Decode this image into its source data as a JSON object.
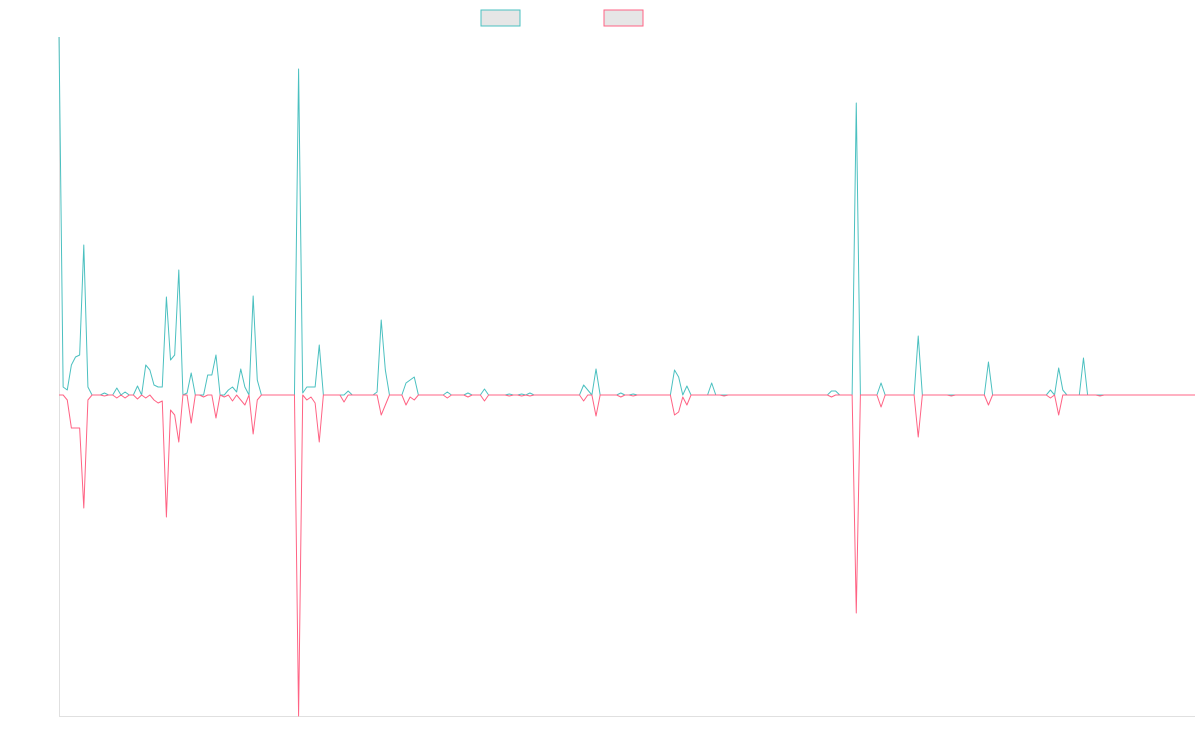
{
  "chart_data": {
    "type": "line",
    "categories": [
      null,
      null,
      null,
      null,
      null,
      null,
      null,
      null,
      null,
      null,
      null,
      null,
      null,
      null,
      null,
      null,
      null,
      null,
      null,
      null,
      null,
      null,
      null,
      null,
      null,
      null,
      null,
      null,
      null,
      null,
      null,
      null,
      null,
      null,
      null,
      null,
      null,
      null,
      null,
      null,
      null,
      null,
      null,
      null,
      null,
      null,
      null,
      null,
      null,
      null,
      null,
      null,
      null,
      null,
      null,
      null,
      null,
      null,
      null,
      null,
      null,
      null,
      null,
      null,
      null,
      null,
      null,
      null,
      null,
      null,
      null,
      null,
      null,
      null,
      null,
      null,
      null,
      null,
      null,
      null,
      null,
      null,
      null,
      null,
      null,
      null,
      null,
      null,
      null,
      null,
      null,
      null,
      null,
      null,
      null,
      null,
      null,
      null,
      null,
      null,
      null,
      null,
      null,
      null,
      null,
      null,
      null,
      null,
      null,
      null,
      null,
      null,
      null,
      null,
      null,
      null,
      null,
      null,
      null,
      null,
      null,
      null,
      null,
      null,
      null,
      null,
      null,
      null,
      null,
      null,
      null,
      null,
      null,
      null,
      null,
      null,
      null,
      null,
      null,
      null,
      null,
      null,
      null,
      null,
      null,
      null,
      null,
      null,
      null,
      null,
      null,
      null,
      null,
      null,
      null,
      null,
      null,
      null,
      null,
      null,
      null,
      null,
      null,
      null,
      null,
      null,
      null,
      null,
      null,
      null,
      null,
      null,
      null,
      null,
      null,
      null,
      null,
      null,
      null,
      null,
      null,
      null,
      null,
      null,
      null,
      null,
      null,
      null,
      null,
      null,
      null,
      null,
      null,
      null,
      null,
      null,
      null,
      null,
      null,
      null,
      null,
      null,
      null,
      null,
      null,
      null,
      null,
      null,
      null,
      null,
      null,
      null,
      null,
      null,
      null,
      null,
      null,
      null,
      null,
      null,
      null,
      null,
      null,
      null,
      null,
      null,
      null,
      null,
      null,
      null,
      null,
      null,
      null,
      null,
      null,
      null,
      null,
      null,
      null,
      null,
      null,
      null,
      null,
      null,
      null,
      null,
      null,
      null,
      null,
      null,
      null,
      null,
      null,
      null,
      null,
      null,
      null,
      null,
      null,
      null,
      null,
      null,
      null,
      null,
      null,
      null,
      null,
      null,
      null,
      null,
      null,
      null,
      null,
      null,
      null,
      null
    ],
    "series": [
      {
        "color": "#4bc0c0",
        "values": [
          358,
          8,
          5,
          30,
          38,
          40,
          150,
          8,
          0,
          0,
          0,
          2,
          0,
          0,
          7,
          0,
          3,
          0,
          0,
          9,
          0,
          30,
          25,
          10,
          8,
          8,
          98,
          35,
          40,
          125,
          0,
          2,
          22,
          0,
          0,
          0,
          20,
          20,
          40,
          0,
          0,
          5,
          8,
          3,
          26,
          8,
          0,
          99,
          15,
          0,
          0,
          0,
          0,
          0,
          0,
          0,
          0,
          0,
          326,
          2,
          8,
          8,
          8,
          50,
          0,
          0,
          0,
          0,
          0,
          0,
          4,
          0,
          0,
          0,
          0,
          0,
          0,
          3,
          75,
          25,
          0,
          0,
          0,
          0,
          12,
          15,
          18,
          0,
          0,
          0,
          0,
          0,
          0,
          0,
          3,
          0,
          0,
          0,
          0,
          2,
          0,
          0,
          0,
          6,
          0,
          0,
          0,
          0,
          0,
          1,
          0,
          0,
          1,
          0,
          2,
          0,
          0,
          0,
          0,
          0,
          0,
          0,
          0,
          0,
          0,
          0,
          0,
          10,
          5,
          0,
          26,
          0,
          0,
          0,
          0,
          0,
          2,
          0,
          0,
          1,
          0,
          0,
          0,
          0,
          0,
          0,
          0,
          0,
          0,
          25,
          18,
          0,
          9,
          0,
          0,
          0,
          0,
          0,
          12,
          0,
          0,
          0,
          0,
          0,
          0,
          0,
          0,
          0,
          0,
          0,
          0,
          0,
          0,
          0,
          0,
          0,
          0,
          0,
          0,
          0,
          0,
          0,
          0,
          0,
          0,
          0,
          0,
          4,
          4,
          0,
          0,
          0,
          0,
          292,
          0,
          0,
          0,
          0,
          0,
          12,
          0,
          0,
          0,
          0,
          0,
          0,
          0,
          0,
          59,
          0,
          0,
          0,
          0,
          0,
          0,
          0,
          0,
          0,
          0,
          0,
          0,
          0,
          0,
          0,
          0,
          33,
          0,
          0,
          0,
          0,
          0,
          0,
          0,
          0,
          0,
          0,
          0,
          0,
          0,
          0,
          5,
          0,
          27,
          5,
          0,
          0,
          0,
          0,
          37,
          0,
          0,
          0,
          0,
          0,
          0,
          0,
          0,
          0,
          0,
          0,
          0,
          0,
          0,
          0,
          0,
          0,
          0,
          0,
          0,
          0,
          0,
          0,
          0,
          0,
          0,
          0
        ]
      },
      {
        "color": "#ff6384",
        "values": [
          0,
          0,
          -5,
          -33,
          -33,
          -33,
          -113,
          -5,
          0,
          0,
          0,
          -1,
          0,
          0,
          -3,
          0,
          -3,
          0,
          0,
          -4,
          0,
          -3,
          0,
          -5,
          -8,
          -6,
          -122,
          -15,
          -20,
          -47,
          0,
          0,
          -28,
          0,
          0,
          -2,
          0,
          0,
          -23,
          0,
          -2,
          0,
          -6,
          0,
          -5,
          -10,
          0,
          -39,
          -5,
          0,
          0,
          0,
          0,
          0,
          0,
          0,
          0,
          0,
          -321,
          0,
          -5,
          -2,
          -8,
          -47,
          0,
          0,
          0,
          0,
          0,
          -7,
          0,
          0,
          0,
          0,
          0,
          0,
          0,
          0,
          -20,
          -10,
          0,
          0,
          0,
          0,
          -10,
          -2,
          -5,
          0,
          0,
          0,
          0,
          0,
          0,
          0,
          -3,
          0,
          0,
          0,
          0,
          -2,
          0,
          0,
          0,
          -6,
          0,
          0,
          0,
          0,
          0,
          -1,
          0,
          0,
          -1,
          0,
          -1,
          0,
          0,
          0,
          0,
          0,
          0,
          0,
          0,
          0,
          0,
          0,
          0,
          -6,
          0,
          0,
          -21,
          0,
          0,
          0,
          0,
          0,
          -2,
          0,
          0,
          -1,
          0,
          0,
          0,
          0,
          0,
          0,
          0,
          0,
          0,
          -20,
          -17,
          -2,
          -10,
          0,
          0,
          0,
          0,
          0,
          0,
          0,
          0,
          -1,
          0,
          0,
          0,
          0,
          0,
          0,
          0,
          0,
          0,
          0,
          0,
          0,
          0,
          0,
          0,
          0,
          0,
          0,
          0,
          0,
          0,
          0,
          0,
          0,
          0,
          -2,
          0,
          0,
          0,
          0,
          0,
          -218,
          0,
          0,
          0,
          0,
          0,
          -12,
          0,
          0,
          0,
          0,
          0,
          0,
          0,
          0,
          -42,
          0,
          0,
          0,
          0,
          0,
          0,
          0,
          -1,
          0,
          0,
          0,
          0,
          0,
          0,
          0,
          0,
          -10,
          0,
          0,
          0,
          0,
          0,
          0,
          0,
          0,
          0,
          0,
          0,
          0,
          0,
          0,
          -3,
          0,
          -20,
          0,
          0,
          0,
          0,
          0,
          0,
          0,
          0,
          0,
          -1,
          0,
          0,
          0,
          0,
          0,
          0,
          0,
          0,
          0,
          0,
          0,
          0,
          0,
          0,
          0,
          0,
          0,
          0,
          0,
          0,
          0,
          0,
          0
        ]
      }
    ],
    "ylim": [
      -321,
      358
    ],
    "grid": false
  }
}
